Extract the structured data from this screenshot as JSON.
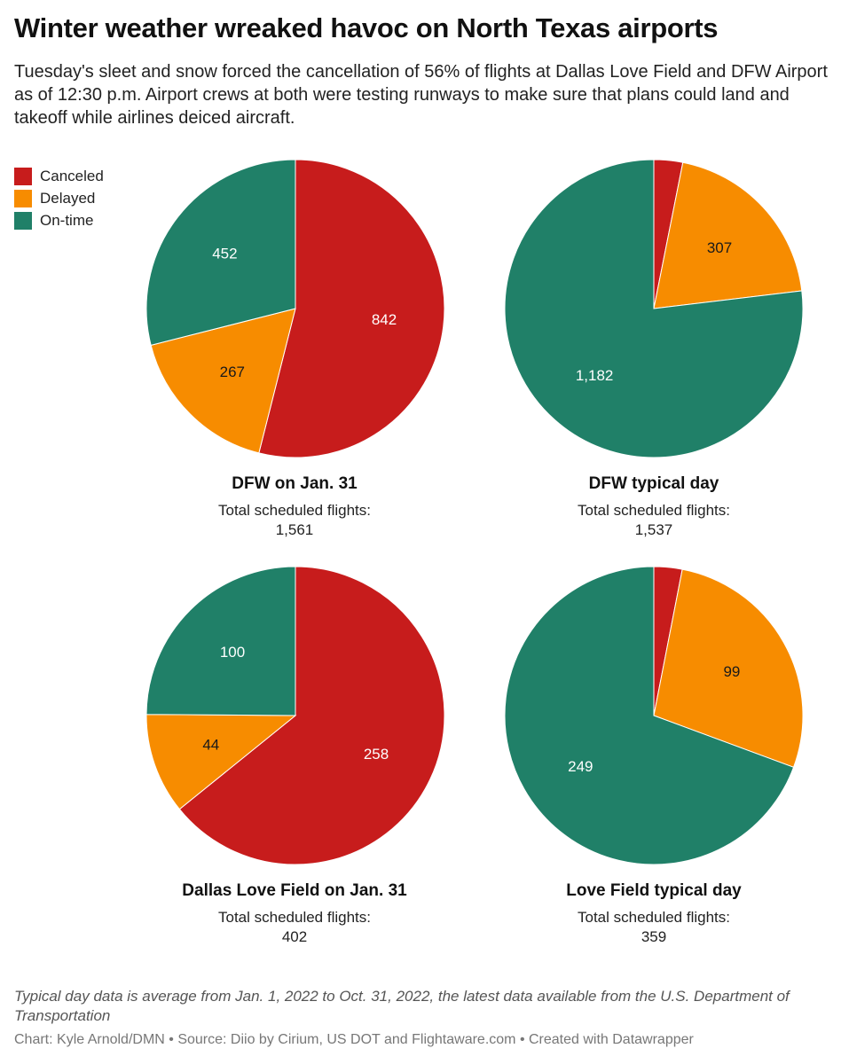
{
  "header": {
    "title": "Winter weather wreaked havoc on North Texas airports",
    "subtitle": "Tuesday's sleet and snow forced the cancellation of 56% of flights at Dallas Love Field and DFW Airport as of 12:30 p.m. Airport crews at both were testing runways to make sure that plans could land and takeoff while airlines deiced aircraft."
  },
  "legend": [
    {
      "label": "Canceled",
      "color": "#c71c1c"
    },
    {
      "label": "Delayed",
      "color": "#f78c00"
    },
    {
      "label": "On-time",
      "color": "#208068"
    }
  ],
  "chart_data": [
    {
      "type": "pie",
      "title": "DFW on Jan. 31",
      "total_label": "Total scheduled flights:",
      "total": "1,561",
      "slices": [
        {
          "category": "Canceled",
          "value": 842,
          "label": "842",
          "color": "#c71c1c"
        },
        {
          "category": "Delayed",
          "value": 267,
          "label": "267",
          "color": "#f78c00"
        },
        {
          "category": "On-time",
          "value": 452,
          "label": "452",
          "color": "#208068"
        }
      ]
    },
    {
      "type": "pie",
      "title": "DFW typical day",
      "total_label": "Total scheduled flights:",
      "total": "1,537",
      "slices": [
        {
          "category": "Canceled",
          "value": 48,
          "label": "",
          "color": "#c71c1c"
        },
        {
          "category": "Delayed",
          "value": 307,
          "label": "307",
          "color": "#f78c00"
        },
        {
          "category": "On-time",
          "value": 1182,
          "label": "1,182",
          "color": "#208068"
        }
      ]
    },
    {
      "type": "pie",
      "title": "Dallas Love Field on Jan. 31",
      "total_label": "Total scheduled flights:",
      "total": "402",
      "slices": [
        {
          "category": "Canceled",
          "value": 258,
          "label": "258",
          "color": "#c71c1c"
        },
        {
          "category": "Delayed",
          "value": 44,
          "label": "44",
          "color": "#f78c00"
        },
        {
          "category": "On-time",
          "value": 100,
          "label": "100",
          "color": "#208068"
        }
      ]
    },
    {
      "type": "pie",
      "title": "Love Field typical day",
      "total_label": "Total scheduled flights:",
      "total": "359",
      "slices": [
        {
          "category": "Canceled",
          "value": 11,
          "label": "",
          "color": "#c71c1c"
        },
        {
          "category": "Delayed",
          "value": 99,
          "label": "99",
          "color": "#f78c00"
        },
        {
          "category": "On-time",
          "value": 249,
          "label": "249",
          "color": "#208068"
        }
      ]
    }
  ],
  "footer": {
    "notes": "Typical day data is average from Jan. 1, 2022 to Oct. 31, 2022, the latest data available from the U.S. Department of Transportation",
    "credit": "Chart: Kyle Arnold/DMN • Source: Diio by Cirium, US DOT and Flightaware.com • Created with Datawrapper"
  }
}
